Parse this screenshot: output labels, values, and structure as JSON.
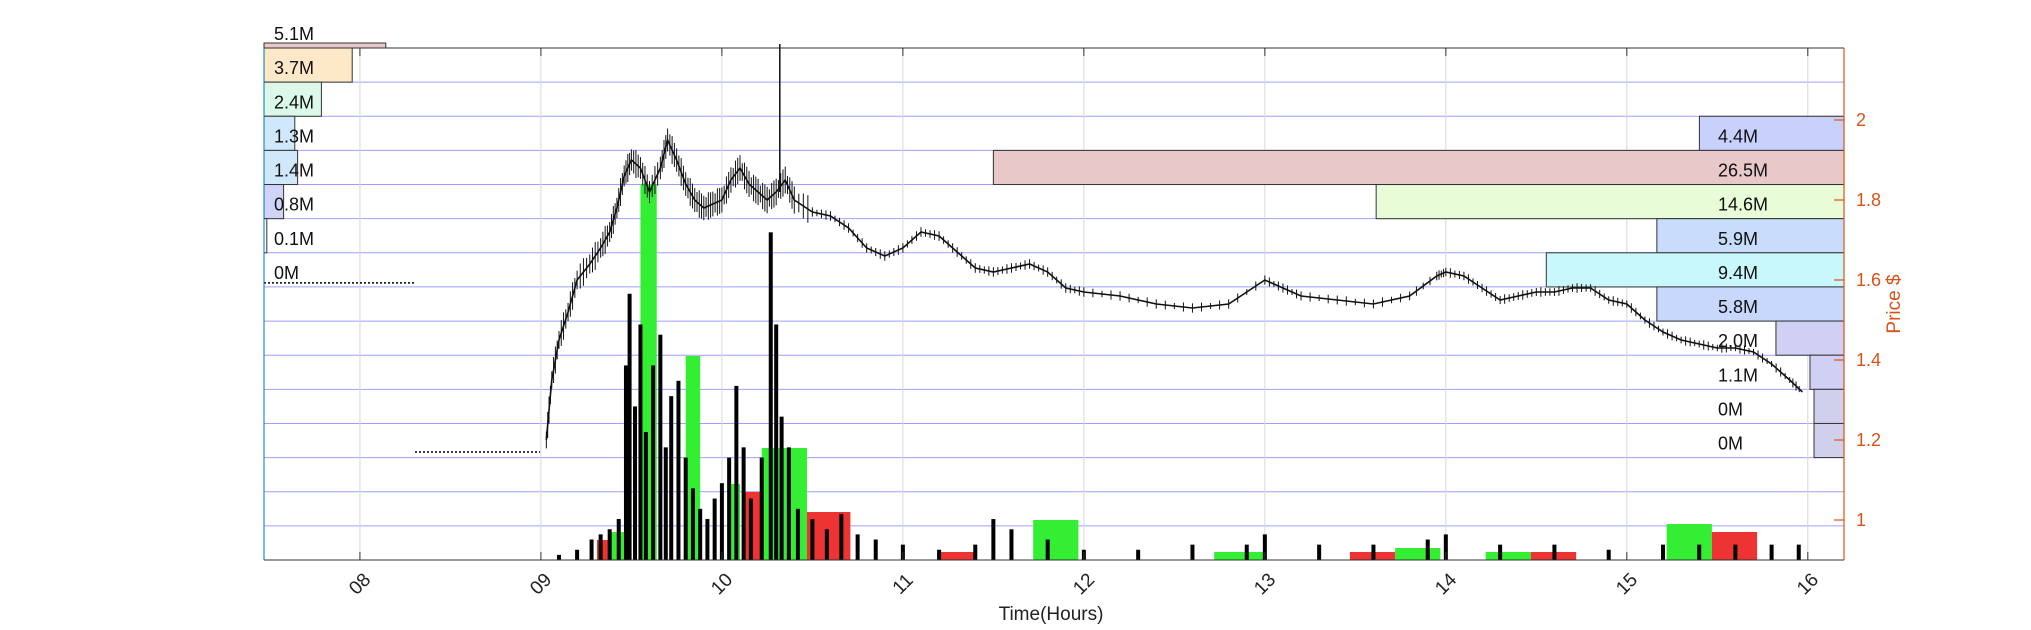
{
  "chart_data": {
    "type": "line",
    "title": "",
    "xlabel": "Time(Hours)",
    "ylabel": "Price $",
    "x_ticks": [
      "08",
      "09",
      "10",
      "11",
      "12",
      "13",
      "14",
      "15",
      "16"
    ],
    "y_ticks": [
      "1",
      "1.2",
      "1.4",
      "1.6",
      "1.8",
      "2"
    ],
    "xlim": [
      7.47,
      16.2
    ],
    "ylim": [
      0.9,
      2.18
    ],
    "grid": true,
    "colors": {
      "axis_right": "#d95319",
      "grid": "#8080ff",
      "buy_volume": "#33ee33",
      "sell_volume": "#ee3333",
      "trade_volume": "#000000"
    },
    "price_series": {
      "name": "",
      "x": [
        9.03,
        9.06,
        9.1,
        9.15,
        9.2,
        9.27,
        9.33,
        9.38,
        9.42,
        9.46,
        9.5,
        9.55,
        9.6,
        9.66,
        9.7,
        9.75,
        9.8,
        9.85,
        9.9,
        9.95,
        10.0,
        10.05,
        10.1,
        10.15,
        10.2,
        10.25,
        10.3,
        10.35,
        10.4,
        10.5,
        10.6,
        10.7,
        10.8,
        10.9,
        11.0,
        11.1,
        11.2,
        11.3,
        11.4,
        11.5,
        11.6,
        11.7,
        11.8,
        11.9,
        12.0,
        12.2,
        12.4,
        12.6,
        12.8,
        13.0,
        13.1,
        13.2,
        13.4,
        13.6,
        13.8,
        13.95,
        14.0,
        14.1,
        14.2,
        14.3,
        14.4,
        14.5,
        14.6,
        14.7,
        14.8,
        14.9,
        15.0,
        15.1,
        15.2,
        15.3,
        15.4,
        15.5,
        15.6,
        15.7,
        15.8,
        15.9,
        15.97
      ],
      "y": [
        1.2,
        1.35,
        1.45,
        1.52,
        1.6,
        1.64,
        1.68,
        1.72,
        1.78,
        1.86,
        1.9,
        1.88,
        1.82,
        1.88,
        1.95,
        1.9,
        1.84,
        1.8,
        1.78,
        1.79,
        1.8,
        1.85,
        1.88,
        1.84,
        1.82,
        1.8,
        1.82,
        1.85,
        1.8,
        1.77,
        1.76,
        1.73,
        1.68,
        1.66,
        1.68,
        1.72,
        1.71,
        1.67,
        1.63,
        1.62,
        1.63,
        1.64,
        1.62,
        1.58,
        1.57,
        1.56,
        1.54,
        1.53,
        1.54,
        1.6,
        1.58,
        1.56,
        1.55,
        1.54,
        1.56,
        1.61,
        1.62,
        1.61,
        1.58,
        1.55,
        1.56,
        1.57,
        1.57,
        1.58,
        1.58,
        1.55,
        1.54,
        1.5,
        1.47,
        1.45,
        1.44,
        1.43,
        1.43,
        1.42,
        1.39,
        1.35,
        1.32
      ]
    },
    "volume_spikes": {
      "x": [
        9.1,
        9.2,
        9.28,
        9.33,
        9.38,
        9.43,
        9.47,
        9.49,
        9.52,
        9.55,
        9.58,
        9.62,
        9.66,
        9.69,
        9.72,
        9.76,
        9.8,
        9.84,
        9.88,
        9.92,
        9.96,
        10.0,
        10.04,
        10.08,
        10.12,
        10.16,
        10.22,
        10.27,
        10.3,
        10.33,
        10.37,
        10.42,
        10.5,
        10.58,
        10.66,
        10.75,
        10.85,
        11.0,
        11.2,
        11.4,
        11.5,
        11.6,
        11.8,
        12.0,
        12.3,
        12.6,
        12.9,
        13.0,
        13.3,
        13.6,
        13.9,
        14.0,
        14.3,
        14.6,
        14.9,
        15.2,
        15.4,
        15.6,
        15.8,
        15.95
      ],
      "h": [
        0.01,
        0.02,
        0.04,
        0.05,
        0.06,
        0.08,
        0.38,
        0.52,
        0.3,
        0.46,
        0.25,
        0.38,
        0.44,
        0.22,
        0.32,
        0.35,
        0.2,
        0.14,
        0.1,
        0.08,
        0.12,
        0.15,
        0.2,
        0.34,
        0.22,
        0.12,
        0.2,
        0.64,
        0.46,
        0.28,
        0.22,
        0.1,
        0.08,
        0.06,
        0.09,
        0.05,
        0.04,
        0.03,
        0.02,
        0.03,
        0.08,
        0.06,
        0.04,
        0.02,
        0.02,
        0.03,
        0.03,
        0.05,
        0.03,
        0.03,
        0.04,
        0.05,
        0.03,
        0.03,
        0.02,
        0.03,
        0.03,
        0.03,
        0.03,
        0.03
      ]
    },
    "buy_sell_bars": [
      {
        "side": "buy",
        "x0": 9.38,
        "x1": 9.47,
        "top": 0.97
      },
      {
        "side": "sell",
        "x0": 9.31,
        "x1": 9.38,
        "top": 0.95
      },
      {
        "side": "buy",
        "x0": 9.55,
        "x1": 9.64,
        "top": 1.84
      },
      {
        "side": "buy",
        "x0": 9.8,
        "x1": 9.88,
        "top": 1.41
      },
      {
        "side": "buy",
        "x0": 10.05,
        "x1": 10.1,
        "top": 1.09
      },
      {
        "side": "sell",
        "x0": 10.13,
        "x1": 10.22,
        "top": 1.07
      },
      {
        "side": "buy",
        "x0": 10.22,
        "x1": 10.47,
        "top": 1.18
      },
      {
        "side": "sell",
        "x0": 10.47,
        "x1": 10.71,
        "top": 1.02
      },
      {
        "side": "sell",
        "x0": 11.2,
        "x1": 11.4,
        "top": 0.92
      },
      {
        "side": "buy",
        "x0": 11.72,
        "x1": 11.97,
        "top": 1.0
      },
      {
        "side": "buy",
        "x0": 12.72,
        "x1": 13.0,
        "top": 0.92
      },
      {
        "side": "sell",
        "x0": 13.47,
        "x1": 13.72,
        "top": 0.92
      },
      {
        "side": "buy",
        "x0": 13.72,
        "x1": 13.97,
        "top": 0.93
      },
      {
        "side": "buy",
        "x0": 14.22,
        "x1": 14.47,
        "top": 0.92
      },
      {
        "side": "sell",
        "x0": 14.47,
        "x1": 14.72,
        "top": 0.92
      },
      {
        "side": "buy",
        "x0": 15.22,
        "x1": 15.47,
        "top": 0.99
      },
      {
        "side": "sell",
        "x0": 15.47,
        "x1": 15.72,
        "top": 0.97
      }
    ],
    "volume_profile_left": {
      "labels": [
        "5.1M",
        "3.7M",
        "2.4M",
        "1.3M",
        "1.4M",
        "0.8M",
        "0.1M",
        "0M"
      ],
      "widths": [
        0.87,
        0.63,
        0.41,
        0.22,
        0.24,
        0.14,
        0.02,
        0.0
      ],
      "colors": [
        "#e8c8c8",
        "#fde8c8",
        "#dcf8e8",
        "#d0e8fc",
        "#d0e8fc",
        "#d0d4f8",
        "#ffffff",
        "#ffffff"
      ]
    },
    "volume_profile_right": {
      "labels": [
        "4.4M",
        "26.5M",
        "14.6M",
        "5.9M",
        "9.4M",
        "5.8M",
        "2.0M",
        "1.1M",
        "0M",
        "0M"
      ],
      "widths": [
        0.17,
        1.0,
        0.55,
        0.22,
        0.35,
        0.22,
        0.08,
        0.04,
        0.01,
        0.01
      ],
      "colors": [
        "#c8d0fc",
        "#e8c8c8",
        "#e8fcd8",
        "#c8dcfc",
        "#c8f8fc",
        "#c8d8fc",
        "#d0d0f4",
        "#d0d0f4",
        "#d0d0ec",
        "#d0d0ec"
      ]
    }
  }
}
